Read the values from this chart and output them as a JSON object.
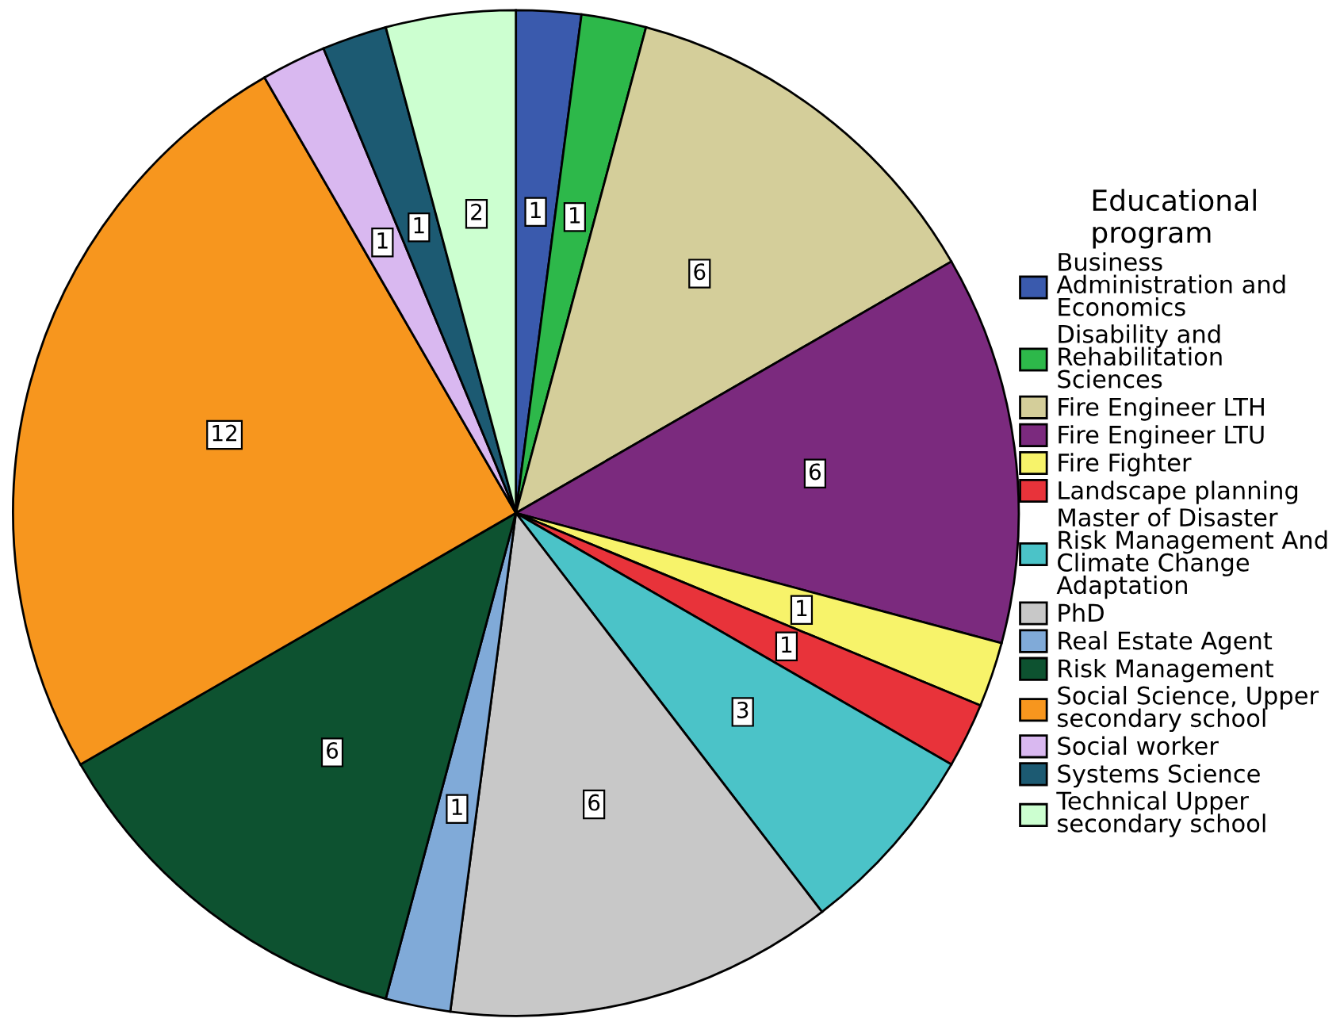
{
  "chart_data": {
    "type": "pie",
    "legend_title": "Educational program",
    "legend": "right",
    "data_labels": true,
    "categories": [
      "Business Administration and Economics",
      "Disability and Rehabilitation Sciences",
      "Fire Engineer LTH",
      "Fire Engineer LTU",
      "Fire Fighter",
      "Landscape planning",
      "Master of Disaster Risk Management And Climate Change Adaptation",
      "PhD",
      "Real Estate Agent",
      "Risk Management",
      "Social Science, Upper secondary school",
      "Social worker",
      "Systems Science",
      "Technical Upper secondary school"
    ],
    "values": [
      1,
      1,
      6,
      6,
      1,
      1,
      3,
      6,
      1,
      6,
      12,
      1,
      1,
      2
    ],
    "colors": [
      "#3a5aad",
      "#2db84a",
      "#d4ce9a",
      "#7b2a7e",
      "#f7f36a",
      "#e8333a",
      "#4bc3c8",
      "#c8c8c8",
      "#80aad8",
      "#0d5230",
      "#f7961e",
      "#d9b8f0",
      "#1c5a72",
      "#ccffd0"
    ]
  }
}
